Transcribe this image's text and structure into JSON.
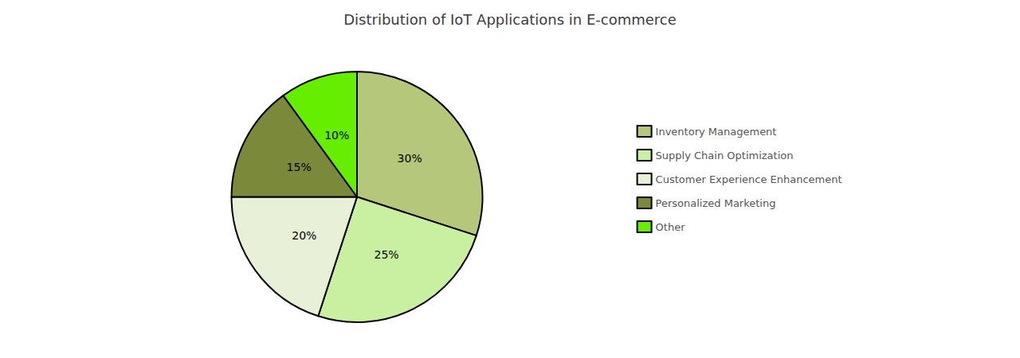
{
  "chart_data": {
    "type": "pie",
    "title": "Distribution of IoT Applications in E-commerce",
    "categories": [
      "Inventory Management",
      "Supply Chain Optimization",
      "Customer Experience Enhancement",
      "Personalized Marketing",
      "Other"
    ],
    "values": [
      30,
      25,
      20,
      15,
      10
    ],
    "value_labels": [
      "30%",
      "25%",
      "20%",
      "15%",
      "10%"
    ],
    "colors": [
      "#b5c77a",
      "#c8f0a0",
      "#e8f0d8",
      "#7a8a3a",
      "#66ee00"
    ],
    "data_labels": true,
    "legend": "right"
  }
}
